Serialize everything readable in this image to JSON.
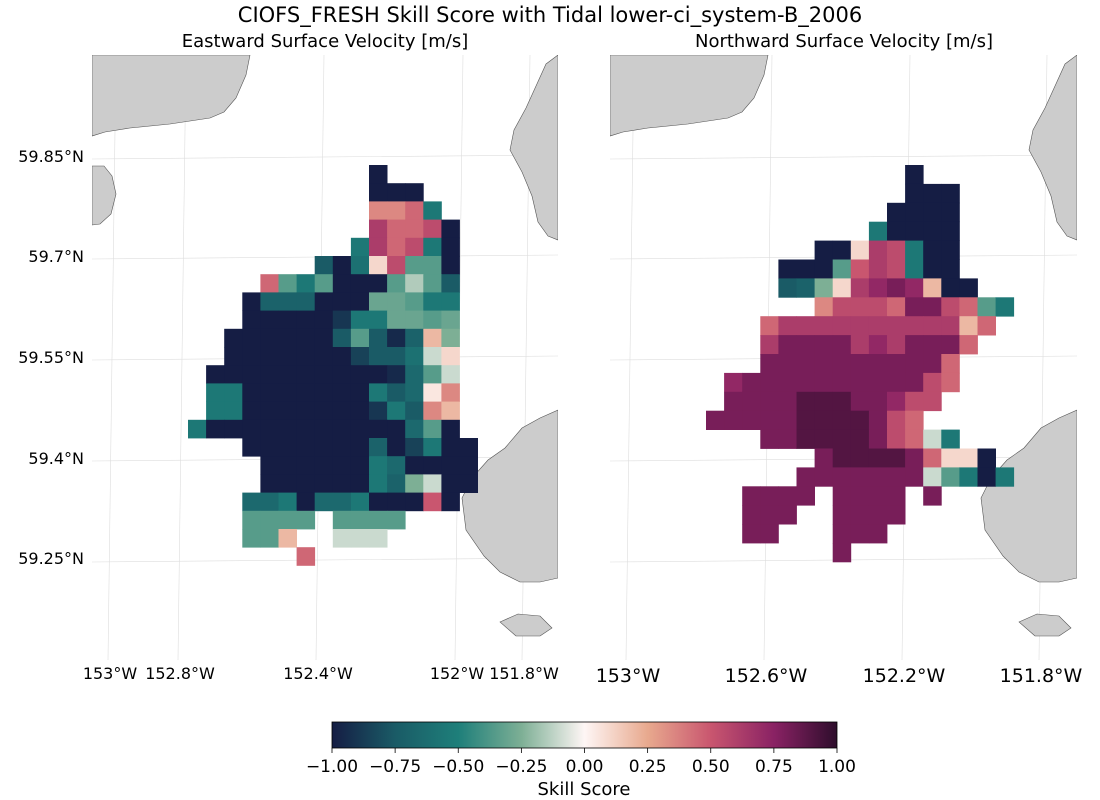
{
  "figure": {
    "title": "CIOFS_FRESH Skill Score with Tidal lower-ci_system-B_2006"
  },
  "panels": [
    {
      "subtitle": "Eastward Surface Velocity [m/s]",
      "lat_ticks": [
        "59.85°N",
        "59.7°N",
        "59.55°N",
        "59.4°N",
        "59.25°N"
      ],
      "lon_ticks": [
        "153°W",
        "152.8°W",
        "152.4°W",
        "152°W",
        "151.8°W"
      ]
    },
    {
      "subtitle": "Northward Surface Velocity [m/s]",
      "lat_ticks": [],
      "lon_ticks": [
        "153°W",
        "152.6°W",
        "152.2°W",
        "151.8°W"
      ]
    }
  ],
  "colorbar": {
    "label": "Skill Score",
    "ticks": [
      "−1.00",
      "−0.75",
      "−0.50",
      "−0.25",
      "0.00",
      "0.25",
      "0.50",
      "0.75",
      "1.00"
    ],
    "colormap": [
      "#151d44",
      "#1a5b66",
      "#1e7f7a",
      "#7daf95",
      "#fef6f5",
      "#e8a98e",
      "#c9566f",
      "#8a2264",
      "#2e0d2c"
    ]
  },
  "colors": {
    "land": "#cccccc",
    "grid": "#dddddd"
  },
  "chart_data": {
    "type": "heatmap",
    "value_range": [
      -1.0,
      1.0
    ],
    "grid_rows_top_lat": 59.843,
    "grid_row_step_deg": 0.0278,
    "east_cols_first_lon": -152.77,
    "north_cols_first_lon": -152.77,
    "col_step_deg": 0.0546,
    "eastward": [
      "..........Z....",
      "..........ZZZ..",
      "..........ppqg.",
      "..........sqqrZ",
      ".........gsqrgZ",
      ".......dZmwrhhZ",
      "....qhghZZZhnhd",
      "...ZeeeZZZjjhgg",
      "...ZZZZZaggjjhj",
      "..ZZZZZZdhdXeui",
      "..ZZZZZZZcddmvw",
      ".ZZZZZZZZZZXfhv",
      ".ggZZZZZZZgdfop",
      ".ggZZZZZZZagdpu",
      "gZZZZZZZZZZZfhZ",
      "...ZZZZZZZeZcgZZ",
      "....ZZZZZZgfZZZZ",
      "....ZZZZZZgeivZZ",
      "...ffgZffgZZZtZ.",
      "...hhhh.hhhh...",
      "...hhu..vvv....",
      "......q........"
    ],
    "northward": [
      "...........Z....",
      "...........ZZZ..",
      "..........ZZZZ..",
      ".........gZZZZ..",
      "......ZZwsrgZZ..",
      "....ZZZhtsrgZZ..",
      "....deiwsxyxuZZ.",
      "......prrrqyyrqhg",
      "...qssssssssssuq",
      "...syyyysxsyyyq.",
      "...yyyyyyyyyyq..",
      ".xyyyyyyyyyyrq..",
      ".yyyyzzzyyxrr...",
      "yyyyyzzzzyrq....",
      "...yyzzzzyrqvg..",
      "......yzzzzyqwwZ",
      ".....yyyyyyyvhgZg",
      "..yyyy.yyyy.y...",
      "..yyy..yyyy.....",
      "..yy...yyy......",
      ".......y........"
    ],
    "legend_codes": {
      "Z": -1.0,
      "X": -0.95,
      "a": -0.9,
      "c": -0.85,
      "d": -0.75,
      "e": -0.7,
      "f": -0.65,
      "g": -0.55,
      "h": -0.35,
      "i": -0.25,
      "j": -0.3,
      "m": -0.6,
      "n": -0.15,
      "o": 0.05,
      "p": 0.35,
      "q": 0.45,
      "r": 0.55,
      "s": 0.62,
      "t": 0.5,
      "u": 0.2,
      "v": -0.1,
      "w": 0.1,
      "x": 0.72,
      "y": 0.8,
      "z": 0.9
    }
  }
}
